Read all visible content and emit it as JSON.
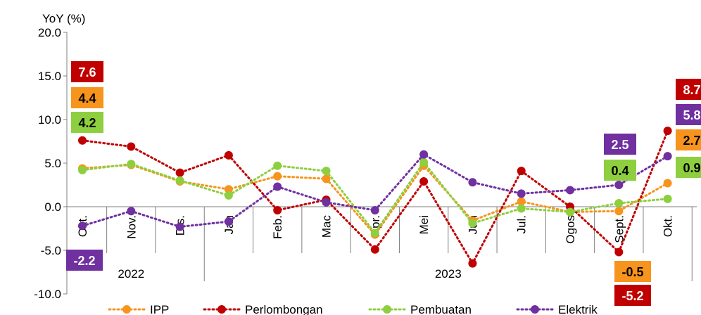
{
  "chart_data": {
    "type": "line",
    "ylabel": "YoY (%)",
    "ylim": [
      -10,
      20
    ],
    "y_ticks": [
      "20.0",
      "15.0",
      "10.0",
      "5.0",
      "0.0",
      "-5.0",
      "-10.0"
    ],
    "categories": [
      "Okt.",
      "Nov.",
      "Dis.",
      "Jan",
      "Feb.",
      "Mac",
      "Apr.",
      "Mei",
      "Jun",
      "Jul.",
      "Ogos",
      "Sept.",
      "Okt."
    ],
    "year_groups": [
      {
        "label": "2022",
        "span": [
          0,
          2
        ]
      },
      {
        "label": "2023",
        "span": [
          3,
          12
        ]
      }
    ],
    "series": [
      {
        "name": "IPP",
        "color": "#F7941D",
        "values": [
          4.4,
          4.8,
          2.9,
          2.0,
          3.5,
          3.2,
          -3.2,
          4.7,
          -1.6,
          0.6,
          -0.6,
          -0.5,
          2.7
        ]
      },
      {
        "name": "Perlombongan",
        "color": "#C00000",
        "values": [
          7.6,
          6.9,
          3.9,
          5.9,
          -0.4,
          0.8,
          -4.9,
          2.9,
          -6.5,
          4.1,
          0.0,
          -5.2,
          8.7
        ]
      },
      {
        "name": "Pembuatan",
        "color": "#8DCF3F",
        "values": [
          4.2,
          4.9,
          3.0,
          1.3,
          4.7,
          4.1,
          -3.0,
          5.1,
          -1.9,
          -0.2,
          -0.6,
          0.4,
          0.9
        ]
      },
      {
        "name": "Elektrik",
        "color": "#7030A0",
        "values": [
          -2.2,
          -0.5,
          -2.3,
          -1.7,
          2.3,
          0.5,
          -0.4,
          6.0,
          2.8,
          1.5,
          1.9,
          2.5,
          5.8
        ]
      }
    ],
    "data_labels": [
      {
        "text": "7.6",
        "series": "Perlombongan",
        "index": 0
      },
      {
        "text": "4.4",
        "series": "IPP",
        "index": 0
      },
      {
        "text": "4.2",
        "series": "Pembuatan",
        "index": 0
      },
      {
        "text": "-2.2",
        "series": "Elektrik",
        "index": 0
      },
      {
        "text": "2.5",
        "series": "Elektrik",
        "index": 11
      },
      {
        "text": "0.4",
        "series": "Pembuatan",
        "index": 11
      },
      {
        "text": "-0.5",
        "series": "IPP",
        "index": 11
      },
      {
        "text": "-5.2",
        "series": "Perlombongan",
        "index": 11
      },
      {
        "text": "8.7",
        "series": "Perlombongan",
        "index": 12
      },
      {
        "text": "5.8",
        "series": "Elektrik",
        "index": 12
      },
      {
        "text": "2.7",
        "series": "IPP",
        "index": 12
      },
      {
        "text": "0.9",
        "series": "Pembuatan",
        "index": 12
      }
    ],
    "legend_position": "bottom",
    "grid": false
  }
}
